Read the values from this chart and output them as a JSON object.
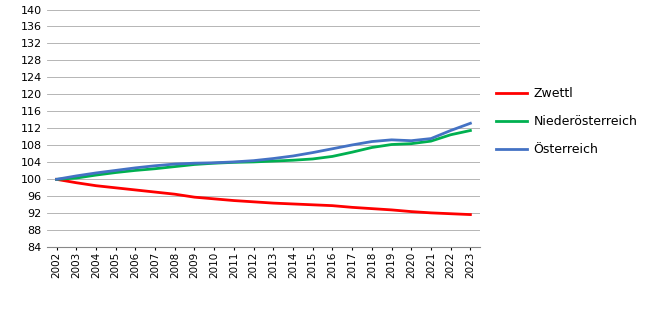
{
  "years": [
    2002,
    2003,
    2004,
    2005,
    2006,
    2007,
    2008,
    2009,
    2010,
    2011,
    2012,
    2013,
    2014,
    2015,
    2016,
    2017,
    2018,
    2019,
    2020,
    2021,
    2022,
    2023
  ],
  "zwettl": [
    100.0,
    99.2,
    98.5,
    98.0,
    97.5,
    97.0,
    96.5,
    95.8,
    95.4,
    95.0,
    94.7,
    94.4,
    94.2,
    94.0,
    93.8,
    93.4,
    93.1,
    92.8,
    92.4,
    92.1,
    91.9,
    91.7
  ],
  "niederoesterreich": [
    100.0,
    100.3,
    101.0,
    101.6,
    102.1,
    102.5,
    103.0,
    103.5,
    103.8,
    104.0,
    104.1,
    104.3,
    104.5,
    104.8,
    105.4,
    106.4,
    107.5,
    108.2,
    108.4,
    109.0,
    110.5,
    111.5
  ],
  "oesterreich": [
    100.0,
    100.8,
    101.5,
    102.1,
    102.7,
    103.2,
    103.6,
    103.8,
    103.9,
    104.1,
    104.4,
    104.9,
    105.5,
    106.3,
    107.2,
    108.1,
    108.9,
    109.3,
    109.1,
    109.6,
    111.5,
    113.2
  ],
  "zwettl_color": "#ff0000",
  "niederoesterreich_color": "#00b050",
  "oesterreich_color": "#4472c4",
  "zwettl_label": "Zwettl",
  "niederoesterreich_label": "Niederösterreich",
  "oesterreich_label": "Österreich",
  "ylim": [
    84,
    140
  ],
  "yticks": [
    84,
    88,
    92,
    96,
    100,
    104,
    108,
    112,
    116,
    120,
    124,
    128,
    132,
    136,
    140
  ],
  "background_color": "#ffffff",
  "line_width": 2.0,
  "legend_fontsize": 9,
  "tick_fontsize": 7.5,
  "ytick_fontsize": 8.0
}
